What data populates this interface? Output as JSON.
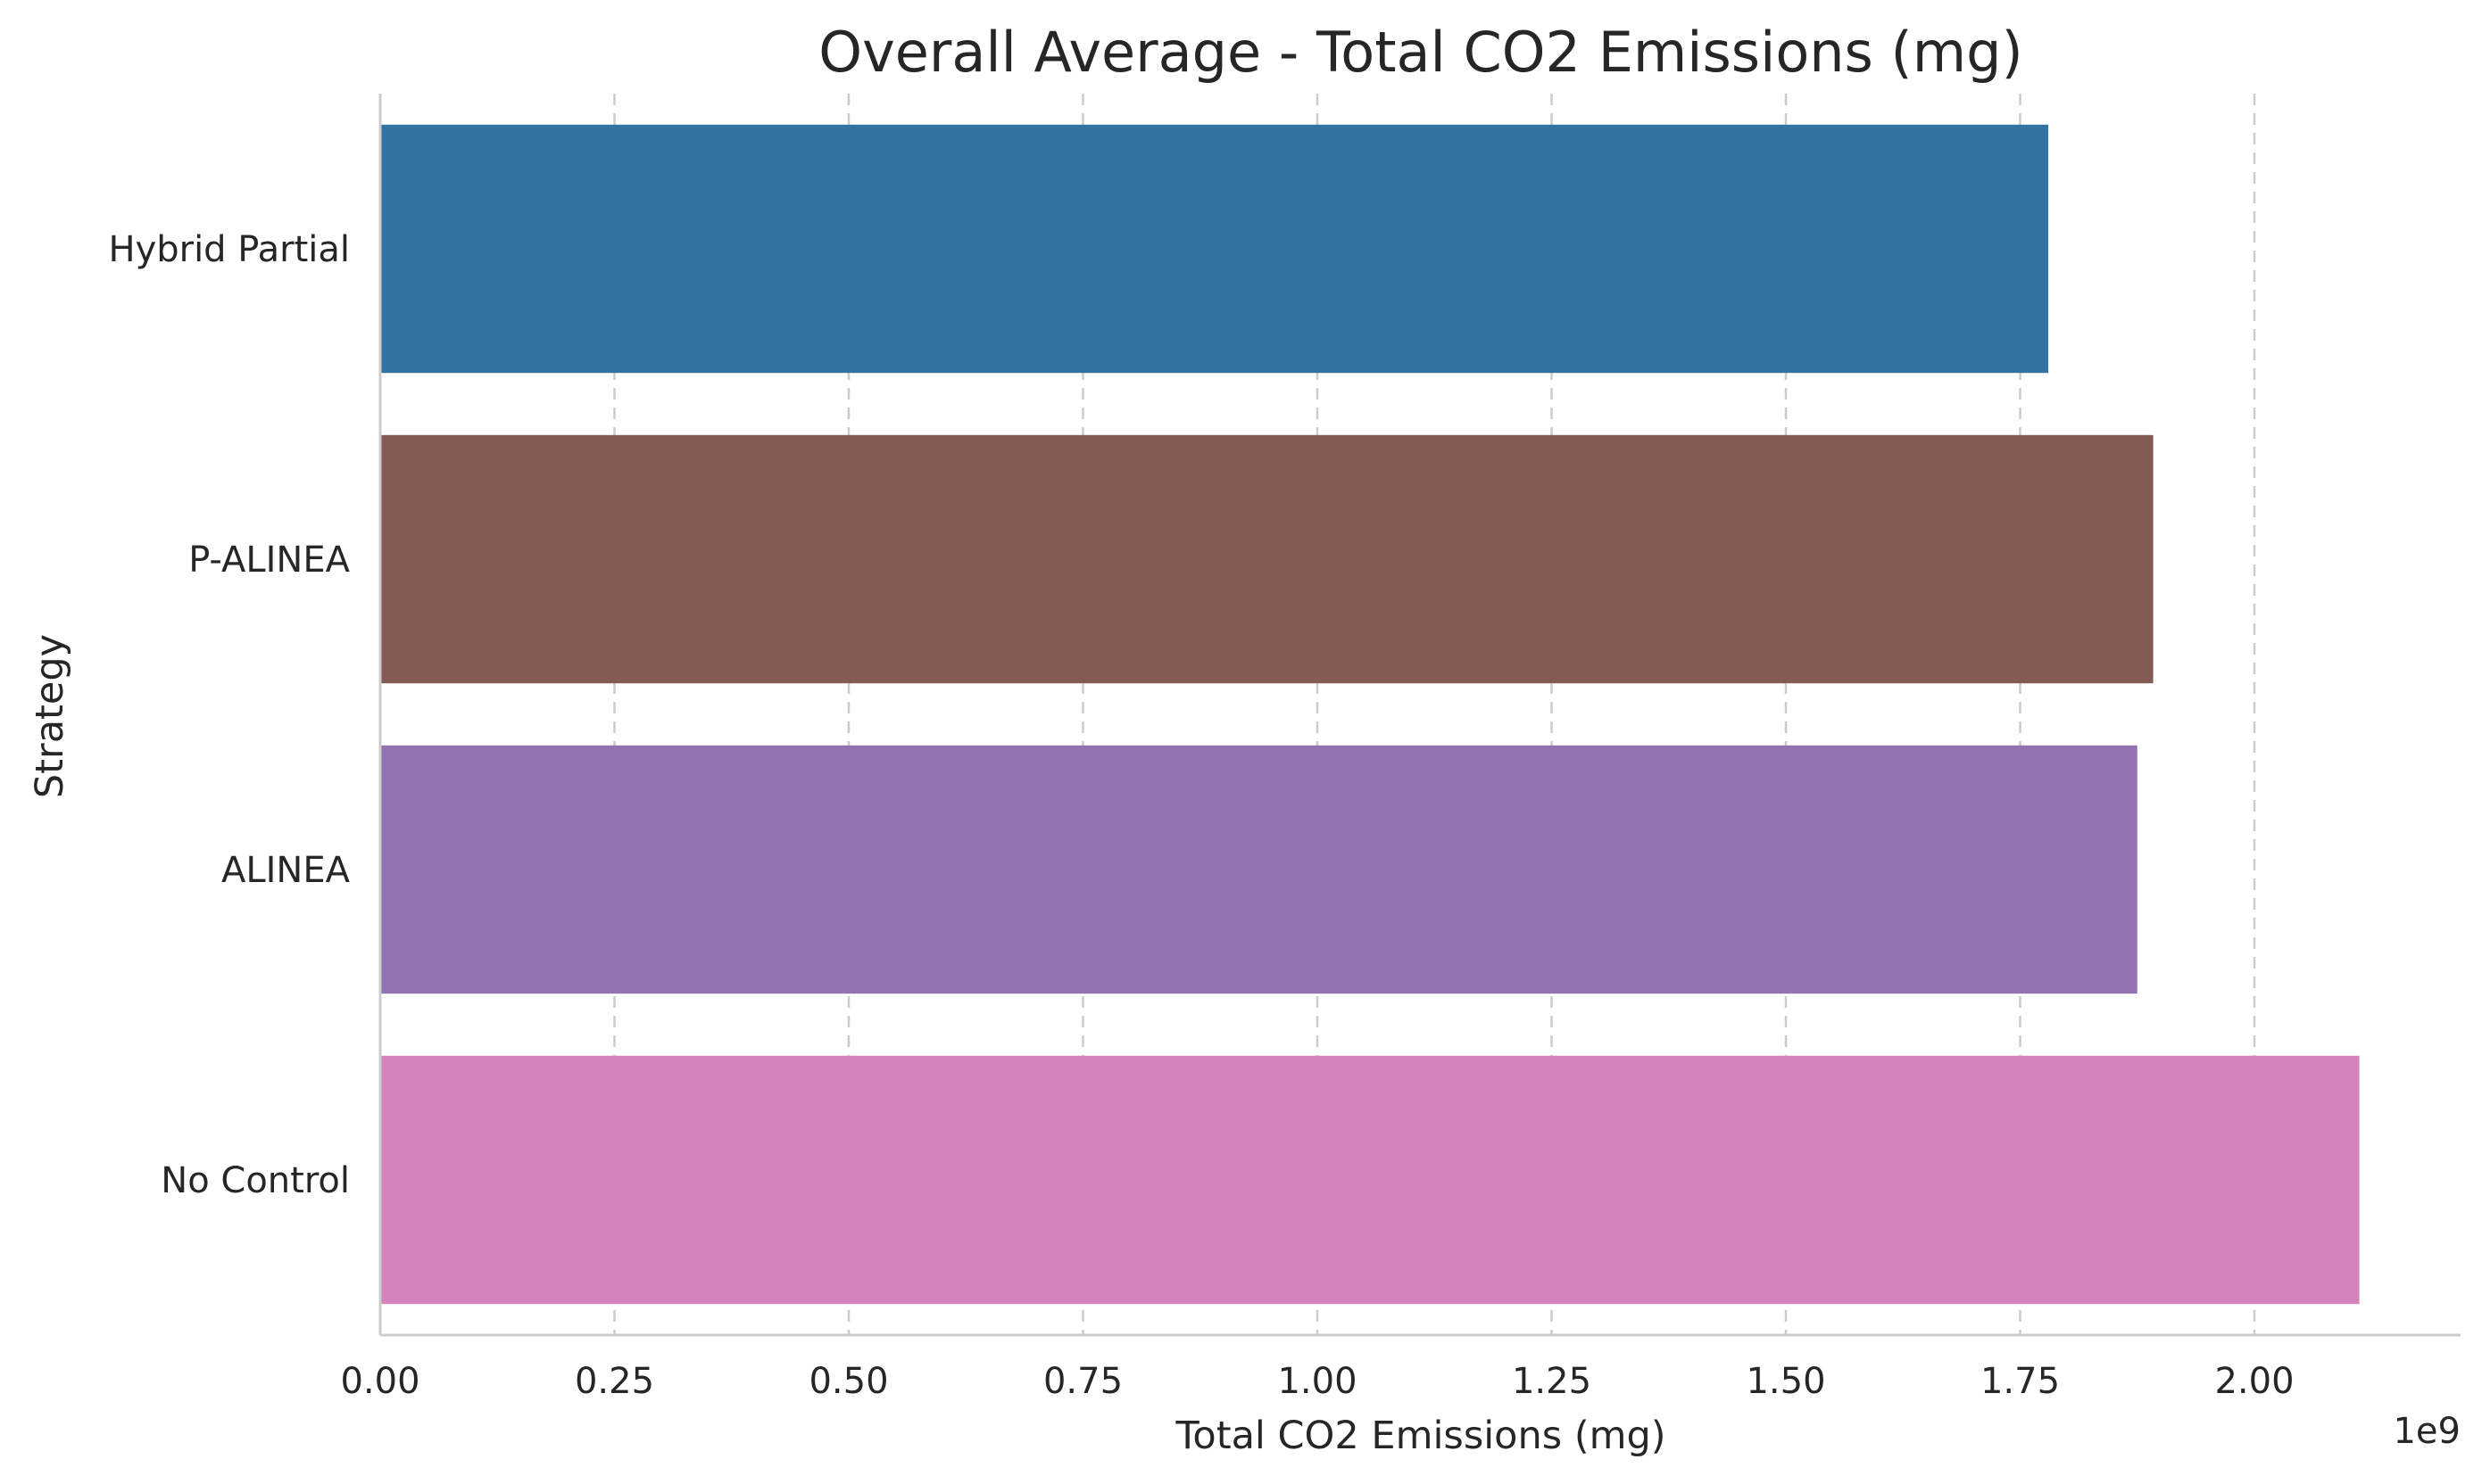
{
  "chart_data": {
    "type": "bar",
    "orientation": "horizontal",
    "title": "Overall Average - Total CO2 Emissions (mg)",
    "xlabel": "Total CO2 Emissions (mg)",
    "ylabel": "Strategy",
    "offset_label": "1e9",
    "categories": [
      "Hybrid Partial",
      "P-ALINEA",
      "ALINEA",
      "No Control"
    ],
    "values": [
      1780000000,
      1892000000,
      1875000000,
      2112000000
    ],
    "colors": [
      "#3274a1",
      "#845b53",
      "#9372b2",
      "#d684bd"
    ],
    "xlim": [
      0,
      2220000000
    ],
    "xticks": [
      0,
      250000000,
      500000000,
      750000000,
      1000000000,
      1250000000,
      1500000000,
      1750000000,
      2000000000
    ],
    "xtick_labels": [
      "0.00",
      "0.25",
      "0.50",
      "0.75",
      "1.00",
      "1.25",
      "1.50",
      "1.75",
      "2.00"
    ],
    "grid": "x-dashed",
    "legend": "none"
  }
}
